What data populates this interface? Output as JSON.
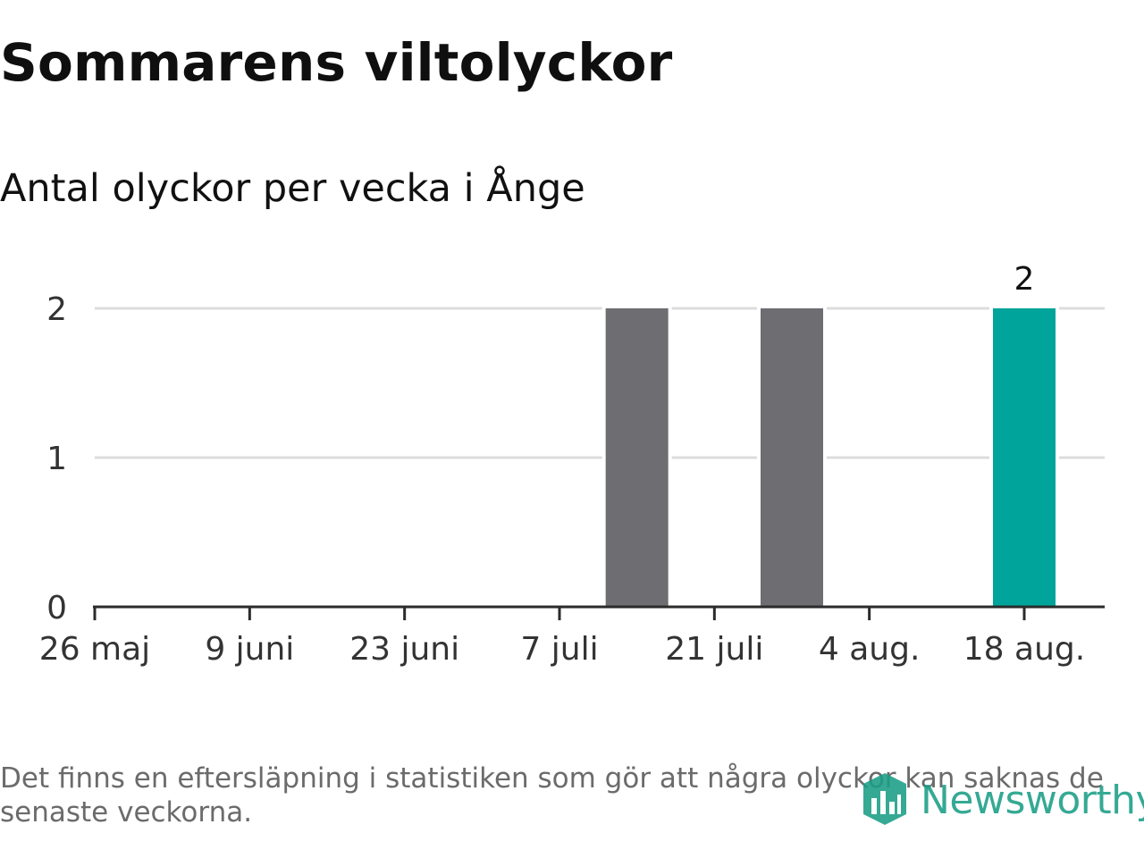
{
  "header": {
    "title": "Sommarens viltolyckor",
    "subtitle": "Antal olyckor per vecka i Ånge"
  },
  "chart_data": {
    "type": "bar",
    "title": "Sommarens viltolyckor",
    "subtitle": "Antal olyckor per vecka i Ånge",
    "xlabel": "",
    "ylabel": "",
    "x": [
      "2024-05-26",
      "2024-06-02",
      "2024-06-09",
      "2024-06-16",
      "2024-06-23",
      "2024-06-30",
      "2024-07-07",
      "2024-07-14",
      "2024-07-21",
      "2024-07-28",
      "2024-08-04",
      "2024-08-11",
      "2024-08-18"
    ],
    "values": [
      0,
      0,
      0,
      0,
      0,
      0,
      0,
      2,
      0,
      2,
      0,
      0,
      2
    ],
    "x_ticks": [
      "26 maj",
      "9 juni",
      "23 juni",
      "7 juli",
      "21 juli",
      "4 aug.",
      "18 aug."
    ],
    "y_ticks": [
      "0",
      "1",
      "2"
    ],
    "ylim": [
      0,
      2
    ],
    "grid": true,
    "legend": "none",
    "highlight_label": "2",
    "colors": {
      "bar": "#6e6d72",
      "highlight": "#00a49a",
      "grid": "#dcdcdc",
      "axis": "#2b2b2b"
    }
  },
  "footer": {
    "note": "Det finns en eftersläpning i statistiken som gör att några olyckor kan saknas de senaste veckorna.",
    "logo_text": "Newsworthy",
    "logo_color": "#1a9e86",
    "logo_icon": "newsworthy-logo-icon"
  }
}
